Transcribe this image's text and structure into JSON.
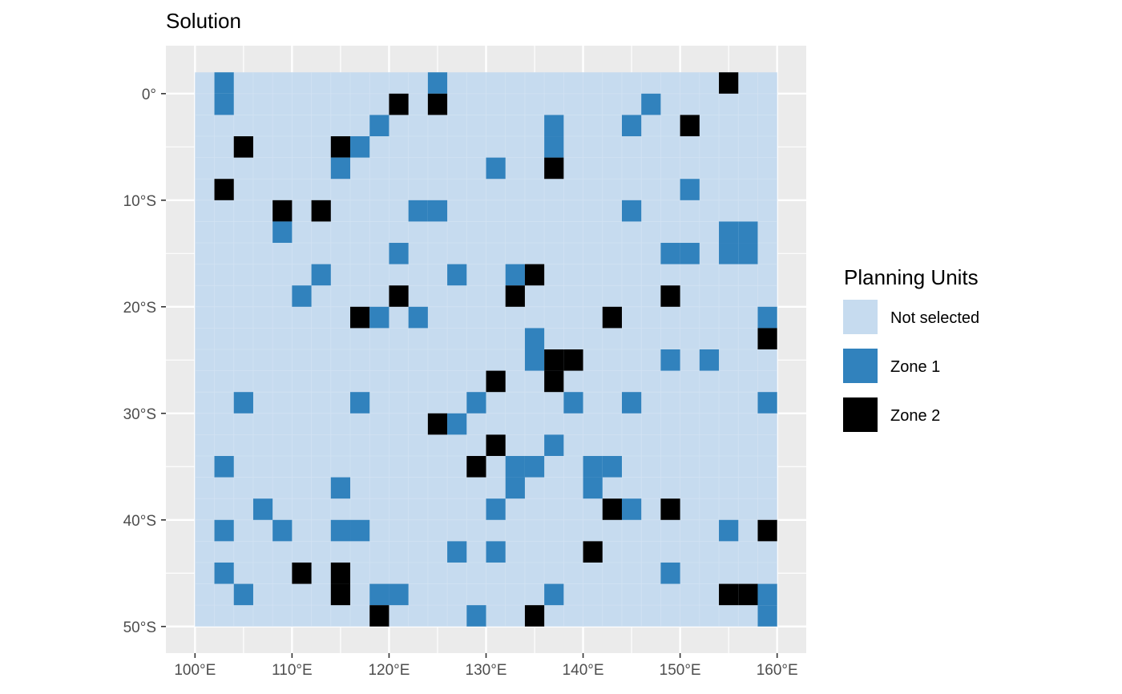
{
  "chart_data": {
    "type": "heatmap",
    "title": "Solution",
    "xlabel": "",
    "ylabel": "",
    "x_ticks": [
      "100°E",
      "110°E",
      "120°E",
      "130°E",
      "140°E",
      "150°E",
      "160°E"
    ],
    "y_ticks": [
      "0°",
      "10°S",
      "20°S",
      "30°S",
      "40°S",
      "50°S"
    ],
    "x_tick_values": [
      100,
      110,
      120,
      130,
      140,
      150,
      160
    ],
    "y_tick_values": [
      0,
      -10,
      -20,
      -30,
      -40,
      -50
    ],
    "xlim": [
      97,
      163
    ],
    "ylim": [
      -52.5,
      4.5
    ],
    "extent": {
      "lon": [
        100,
        160
      ],
      "lat": [
        -50,
        2
      ]
    },
    "cell_size": {
      "lon": 2,
      "lat": 2
    },
    "grid": true,
    "legend": {
      "title": "Planning Units",
      "position": "right",
      "entries": [
        {
          "key": "none",
          "label": "Not selected",
          "color": "#c6dbef"
        },
        {
          "key": "zone1",
          "label": "Zone 1",
          "color": "#3182bd"
        },
        {
          "key": "zone2",
          "label": "Zone 2",
          "color": "#000000"
        }
      ]
    },
    "colors": {
      "panel_background": "#ebebeb",
      "grid_line": "#ffffff",
      "not_selected": "#c6dbef",
      "zone1": "#3182bd",
      "zone2": "#000000"
    },
    "cells": [
      {
        "zone": 1,
        "lon": 103,
        "lat": 1
      },
      {
        "zone": 1,
        "lon": 125,
        "lat": 1
      },
      {
        "zone": 2,
        "lon": 155,
        "lat": 1
      },
      {
        "zone": 1,
        "lon": 103,
        "lat": -1
      },
      {
        "zone": 2,
        "lon": 121,
        "lat": -1
      },
      {
        "zone": 2,
        "lon": 125,
        "lat": -1
      },
      {
        "zone": 1,
        "lon": 147,
        "lat": -1
      },
      {
        "zone": 1,
        "lon": 119,
        "lat": -3
      },
      {
        "zone": 1,
        "lon": 137,
        "lat": -3
      },
      {
        "zone": 1,
        "lon": 145,
        "lat": -3
      },
      {
        "zone": 2,
        "lon": 151,
        "lat": -3
      },
      {
        "zone": 2,
        "lon": 105,
        "lat": -5
      },
      {
        "zone": 2,
        "lon": 115,
        "lat": -5
      },
      {
        "zone": 1,
        "lon": 117,
        "lat": -5
      },
      {
        "zone": 1,
        "lon": 137,
        "lat": -5
      },
      {
        "zone": 1,
        "lon": 115,
        "lat": -7
      },
      {
        "zone": 1,
        "lon": 131,
        "lat": -7
      },
      {
        "zone": 2,
        "lon": 137,
        "lat": -7
      },
      {
        "zone": 2,
        "lon": 103,
        "lat": -9
      },
      {
        "zone": 1,
        "lon": 151,
        "lat": -9
      },
      {
        "zone": 2,
        "lon": 109,
        "lat": -11
      },
      {
        "zone": 2,
        "lon": 113,
        "lat": -11
      },
      {
        "zone": 1,
        "lon": 123,
        "lat": -11
      },
      {
        "zone": 1,
        "lon": 125,
        "lat": -11
      },
      {
        "zone": 1,
        "lon": 145,
        "lat": -11
      },
      {
        "zone": 1,
        "lon": 109,
        "lat": -13
      },
      {
        "zone": 1,
        "lon": 155,
        "lat": -13
      },
      {
        "zone": 1,
        "lon": 157,
        "lat": -13
      },
      {
        "zone": 1,
        "lon": 121,
        "lat": -15
      },
      {
        "zone": 1,
        "lon": 149,
        "lat": -15
      },
      {
        "zone": 1,
        "lon": 151,
        "lat": -15
      },
      {
        "zone": 1,
        "lon": 155,
        "lat": -15
      },
      {
        "zone": 1,
        "lon": 157,
        "lat": -15
      },
      {
        "zone": 1,
        "lon": 113,
        "lat": -17
      },
      {
        "zone": 1,
        "lon": 127,
        "lat": -17
      },
      {
        "zone": 1,
        "lon": 133,
        "lat": -17
      },
      {
        "zone": 2,
        "lon": 135,
        "lat": -17
      },
      {
        "zone": 1,
        "lon": 111,
        "lat": -19
      },
      {
        "zone": 2,
        "lon": 121,
        "lat": -19
      },
      {
        "zone": 2,
        "lon": 133,
        "lat": -19
      },
      {
        "zone": 2,
        "lon": 149,
        "lat": -19
      },
      {
        "zone": 2,
        "lon": 117,
        "lat": -21
      },
      {
        "zone": 1,
        "lon": 119,
        "lat": -21
      },
      {
        "zone": 1,
        "lon": 123,
        "lat": -21
      },
      {
        "zone": 2,
        "lon": 143,
        "lat": -21
      },
      {
        "zone": 1,
        "lon": 159,
        "lat": -21
      },
      {
        "zone": 1,
        "lon": 135,
        "lat": -23
      },
      {
        "zone": 2,
        "lon": 159,
        "lat": -23
      },
      {
        "zone": 1,
        "lon": 135,
        "lat": -25
      },
      {
        "zone": 2,
        "lon": 137,
        "lat": -25
      },
      {
        "zone": 2,
        "lon": 139,
        "lat": -25
      },
      {
        "zone": 1,
        "lon": 149,
        "lat": -25
      },
      {
        "zone": 1,
        "lon": 153,
        "lat": -25
      },
      {
        "zone": 2,
        "lon": 131,
        "lat": -27
      },
      {
        "zone": 2,
        "lon": 137,
        "lat": -27
      },
      {
        "zone": 1,
        "lon": 105,
        "lat": -29
      },
      {
        "zone": 1,
        "lon": 117,
        "lat": -29
      },
      {
        "zone": 1,
        "lon": 129,
        "lat": -29
      },
      {
        "zone": 1,
        "lon": 139,
        "lat": -29
      },
      {
        "zone": 1,
        "lon": 145,
        "lat": -29
      },
      {
        "zone": 1,
        "lon": 159,
        "lat": -29
      },
      {
        "zone": 2,
        "lon": 125,
        "lat": -31
      },
      {
        "zone": 1,
        "lon": 127,
        "lat": -31
      },
      {
        "zone": 2,
        "lon": 131,
        "lat": -33
      },
      {
        "zone": 1,
        "lon": 137,
        "lat": -33
      },
      {
        "zone": 1,
        "lon": 103,
        "lat": -35
      },
      {
        "zone": 2,
        "lon": 129,
        "lat": -35
      },
      {
        "zone": 1,
        "lon": 133,
        "lat": -35
      },
      {
        "zone": 1,
        "lon": 135,
        "lat": -35
      },
      {
        "zone": 1,
        "lon": 141,
        "lat": -35
      },
      {
        "zone": 1,
        "lon": 143,
        "lat": -35
      },
      {
        "zone": 1,
        "lon": 115,
        "lat": -37
      },
      {
        "zone": 1,
        "lon": 133,
        "lat": -37
      },
      {
        "zone": 1,
        "lon": 141,
        "lat": -37
      },
      {
        "zone": 1,
        "lon": 107,
        "lat": -39
      },
      {
        "zone": 1,
        "lon": 131,
        "lat": -39
      },
      {
        "zone": 2,
        "lon": 143,
        "lat": -39
      },
      {
        "zone": 1,
        "lon": 145,
        "lat": -39
      },
      {
        "zone": 2,
        "lon": 149,
        "lat": -39
      },
      {
        "zone": 1,
        "lon": 103,
        "lat": -41
      },
      {
        "zone": 1,
        "lon": 109,
        "lat": -41
      },
      {
        "zone": 1,
        "lon": 115,
        "lat": -41
      },
      {
        "zone": 1,
        "lon": 117,
        "lat": -41
      },
      {
        "zone": 1,
        "lon": 155,
        "lat": -41
      },
      {
        "zone": 2,
        "lon": 159,
        "lat": -41
      },
      {
        "zone": 1,
        "lon": 127,
        "lat": -43
      },
      {
        "zone": 1,
        "lon": 131,
        "lat": -43
      },
      {
        "zone": 2,
        "lon": 141,
        "lat": -43
      },
      {
        "zone": 1,
        "lon": 103,
        "lat": -45
      },
      {
        "zone": 2,
        "lon": 111,
        "lat": -45
      },
      {
        "zone": 2,
        "lon": 115,
        "lat": -45
      },
      {
        "zone": 1,
        "lon": 149,
        "lat": -45
      },
      {
        "zone": 1,
        "lon": 105,
        "lat": -47
      },
      {
        "zone": 2,
        "lon": 115,
        "lat": -47
      },
      {
        "zone": 1,
        "lon": 119,
        "lat": -47
      },
      {
        "zone": 1,
        "lon": 121,
        "lat": -47
      },
      {
        "zone": 1,
        "lon": 137,
        "lat": -47
      },
      {
        "zone": 2,
        "lon": 155,
        "lat": -47
      },
      {
        "zone": 2,
        "lon": 157,
        "lat": -47
      },
      {
        "zone": 1,
        "lon": 159,
        "lat": -47
      },
      {
        "zone": 2,
        "lon": 119,
        "lat": -49
      },
      {
        "zone": 1,
        "lon": 129,
        "lat": -49
      },
      {
        "zone": 2,
        "lon": 135,
        "lat": -49
      },
      {
        "zone": 1,
        "lon": 159,
        "lat": -49
      }
    ]
  }
}
